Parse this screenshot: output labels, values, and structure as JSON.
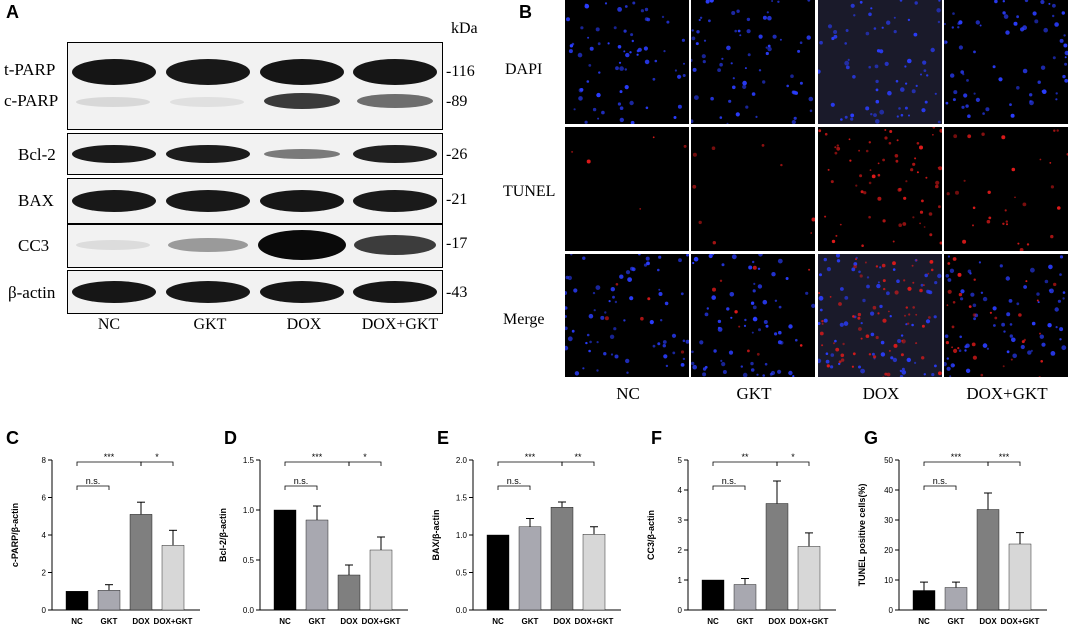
{
  "panels": {
    "A": "A",
    "B": "B",
    "C": "C",
    "D": "D",
    "E": "E",
    "F": "F",
    "G": "G"
  },
  "western": {
    "kda_header": "kDa",
    "lanes": [
      "NC",
      "GKT",
      "DOX",
      "DOX+GKT"
    ],
    "rows": [
      {
        "labels": [
          "t-PARP",
          "c-PARP"
        ],
        "markers": [
          "-116",
          "-89"
        ]
      },
      {
        "labels": [
          "Bcl-2"
        ],
        "markers": [
          "-26"
        ]
      },
      {
        "labels": [
          "BAX"
        ],
        "markers": [
          "-21"
        ]
      },
      {
        "labels": [
          "CC3"
        ],
        "markers": [
          "-17"
        ]
      },
      {
        "labels": [
          "β-actin"
        ],
        "markers": [
          "-43"
        ]
      }
    ]
  },
  "tunel": {
    "rows": [
      "DAPI",
      "TUNEL",
      "Merge"
    ],
    "cols": [
      "NC",
      "GKT",
      "DOX",
      "DOX+GKT"
    ],
    "colors": {
      "dapi": "#2a3dff",
      "tunel": "#e01a1a"
    }
  },
  "chart_data": [
    {
      "type": "bar",
      "panel": "C",
      "categories": [
        "NC",
        "GKT",
        "DOX",
        "DOX+GKT"
      ],
      "values": [
        1.0,
        1.05,
        5.1,
        3.45
      ],
      "errors": [
        0,
        0.3,
        0.65,
        0.8
      ],
      "ylabel": "c-PARP/β-actin",
      "ylim": [
        0,
        8
      ],
      "yticks": [
        "0",
        "2",
        "4",
        "6",
        "8"
      ],
      "brackets": [
        {
          "from": 0,
          "to": 1,
          "text": "n.s.",
          "level": 1
        },
        {
          "from": 0,
          "to": 2,
          "text": "***",
          "level": 2
        },
        {
          "from": 2,
          "to": 3,
          "text": "*",
          "level": 2
        }
      ]
    },
    {
      "type": "bar",
      "panel": "D",
      "categories": [
        "NC",
        "GKT",
        "DOX",
        "DOX+GKT"
      ],
      "values": [
        1.0,
        0.9,
        0.35,
        0.6
      ],
      "errors": [
        0,
        0.14,
        0.1,
        0.13
      ],
      "ylabel": "Bcl-2/β-actin",
      "ylim": [
        0,
        1.5
      ],
      "yticks": [
        "0.0",
        "0.5",
        "1.0",
        "1.5"
      ],
      "brackets": [
        {
          "from": 0,
          "to": 1,
          "text": "n.s.",
          "level": 1
        },
        {
          "from": 0,
          "to": 2,
          "text": "***",
          "level": 2
        },
        {
          "from": 2,
          "to": 3,
          "text": "*",
          "level": 2
        }
      ]
    },
    {
      "type": "bar",
      "panel": "E",
      "categories": [
        "NC",
        "GKT",
        "DOX",
        "DOX+GKT"
      ],
      "values": [
        1.0,
        1.11,
        1.37,
        1.01
      ],
      "errors": [
        0,
        0.11,
        0.07,
        0.1
      ],
      "ylabel": "BAX/β-actin",
      "ylim": [
        0,
        2.0
      ],
      "yticks": [
        "0.0",
        "0.5",
        "1.0",
        "1.5",
        "2.0"
      ],
      "brackets": [
        {
          "from": 0,
          "to": 1,
          "text": "n.s.",
          "level": 1
        },
        {
          "from": 0,
          "to": 2,
          "text": "***",
          "level": 2
        },
        {
          "from": 2,
          "to": 3,
          "text": "**",
          "level": 2
        }
      ]
    },
    {
      "type": "bar",
      "panel": "F",
      "categories": [
        "NC",
        "GKT",
        "DOX",
        "DOX+GKT"
      ],
      "values": [
        1.0,
        0.85,
        3.55,
        2.12
      ],
      "errors": [
        0,
        0.2,
        0.75,
        0.45
      ],
      "ylabel": "CC3/β-actin",
      "ylim": [
        0,
        5
      ],
      "yticks": [
        "0",
        "1",
        "2",
        "3",
        "4",
        "5"
      ],
      "brackets": [
        {
          "from": 0,
          "to": 1,
          "text": "n.s.",
          "level": 1
        },
        {
          "from": 0,
          "to": 2,
          "text": "**",
          "level": 2
        },
        {
          "from": 2,
          "to": 3,
          "text": "*",
          "level": 2
        }
      ]
    },
    {
      "type": "bar",
      "panel": "G",
      "categories": [
        "NC",
        "GKT",
        "DOX",
        "DOX+GKT"
      ],
      "values": [
        6.5,
        7.5,
        33.5,
        22.0
      ],
      "errors": [
        2.8,
        1.8,
        5.5,
        3.8
      ],
      "ylabel": "TUNEL positive cells(%)",
      "ylim": [
        0,
        50
      ],
      "yticks": [
        "0",
        "10",
        "20",
        "30",
        "40",
        "50"
      ],
      "brackets": [
        {
          "from": 0,
          "to": 1,
          "text": "n.s.",
          "level": 1
        },
        {
          "from": 0,
          "to": 2,
          "text": "***",
          "level": 2
        },
        {
          "from": 2,
          "to": 3,
          "text": "***",
          "level": 2
        }
      ]
    }
  ],
  "bar_colors": [
    "#000000",
    "#a8a8b0",
    "#7f7f7f",
    "#d7d7d7"
  ]
}
